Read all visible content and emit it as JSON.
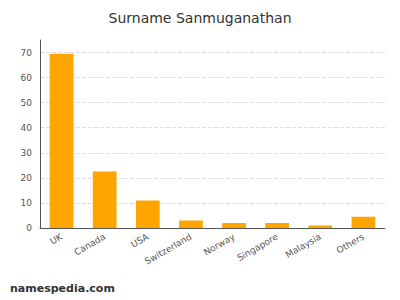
{
  "chart_data": {
    "type": "bar",
    "title": "Surname Sanmuganathan",
    "categories": [
      "UK",
      "Canada",
      "USA",
      "Switzerland",
      "Norway",
      "Singapore",
      "Malaysia",
      "Others"
    ],
    "values": [
      69.5,
      22.5,
      11.0,
      3.0,
      2.0,
      2.0,
      1.0,
      4.5
    ],
    "color": "#FFA500",
    "ylim": [
      0,
      75
    ],
    "yticks": [
      0,
      10,
      20,
      30,
      40,
      50,
      60,
      70
    ],
    "grid": true,
    "annotations": [
      "namespedia.com"
    ]
  }
}
